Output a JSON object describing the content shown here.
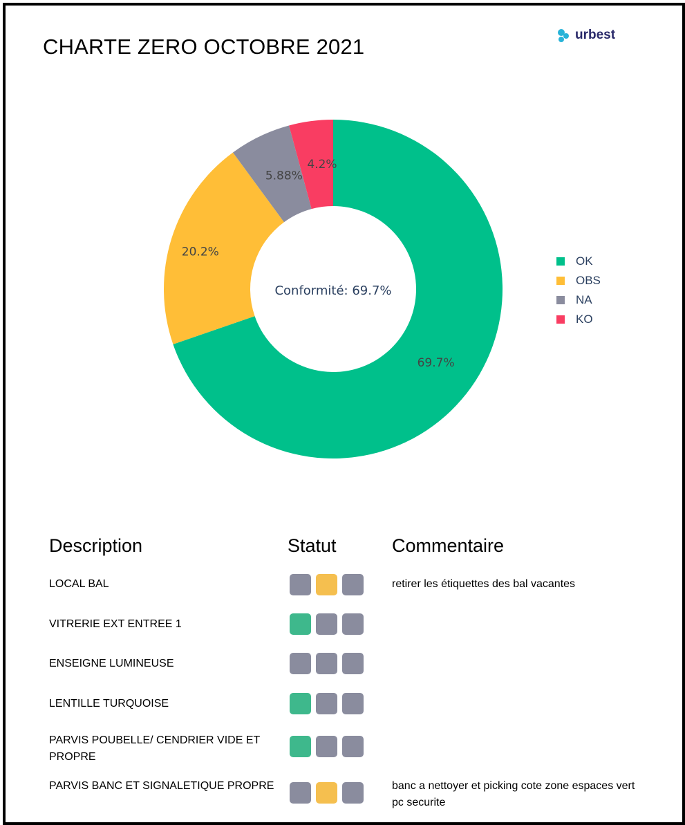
{
  "header": {
    "title": "CHARTE ZERO OCTOBRE 2021",
    "logo_text": "urbest"
  },
  "colors": {
    "OK": "#00c08b",
    "OBS": "#ffbe37",
    "NA": "#8a8c9e",
    "KO": "#f93d62",
    "status_ok": "#3eb88c",
    "status_obs": "#f5bf4f",
    "status_na": "#8a8c9e",
    "logo_blue": "#27b3d8"
  },
  "chart_data": {
    "type": "pie",
    "hole": true,
    "center_text": "Conformité: 69.7%",
    "categories": [
      "OK",
      "OBS",
      "NA",
      "KO"
    ],
    "values": [
      69.7,
      20.2,
      5.88,
      4.2
    ],
    "labels": [
      "69.7%",
      "20.2%",
      "5.88%",
      "4.2%"
    ],
    "legend": [
      "OK",
      "OBS",
      "NA",
      "KO"
    ],
    "legend_position": "right",
    "direction": "clockwise",
    "start": "top"
  },
  "table": {
    "headers": {
      "description": "Description",
      "statut": "Statut",
      "commentaire": "Commentaire"
    },
    "rows": [
      {
        "description": "LOCAL BAL",
        "statut": [
          "NA",
          "OBS",
          "NA"
        ],
        "commentaire": "retirer les étiquettes des bal vacantes"
      },
      {
        "description": "VITRERIE EXT ENTREE 1",
        "statut": [
          "OK",
          "NA",
          "NA"
        ],
        "commentaire": ""
      },
      {
        "description": "ENSEIGNE LUMINEUSE",
        "statut": [
          "NA",
          "NA",
          "NA"
        ],
        "commentaire": ""
      },
      {
        "description": "LENTILLE TURQUOISE",
        "statut": [
          "OK",
          "NA",
          "NA"
        ],
        "commentaire": ""
      },
      {
        "description": "PARVIS POUBELLE/ CENDRIER VIDE ET PROPRE",
        "statut": [
          "OK",
          "NA",
          "NA"
        ],
        "commentaire": ""
      },
      {
        "description": "PARVIS BANC ET SIGNALETIQUE PROPRE",
        "statut": [
          "NA",
          "OBS",
          "NA"
        ],
        "commentaire": "banc a nettoyer et picking cote zone espaces vert pc securite"
      }
    ]
  }
}
